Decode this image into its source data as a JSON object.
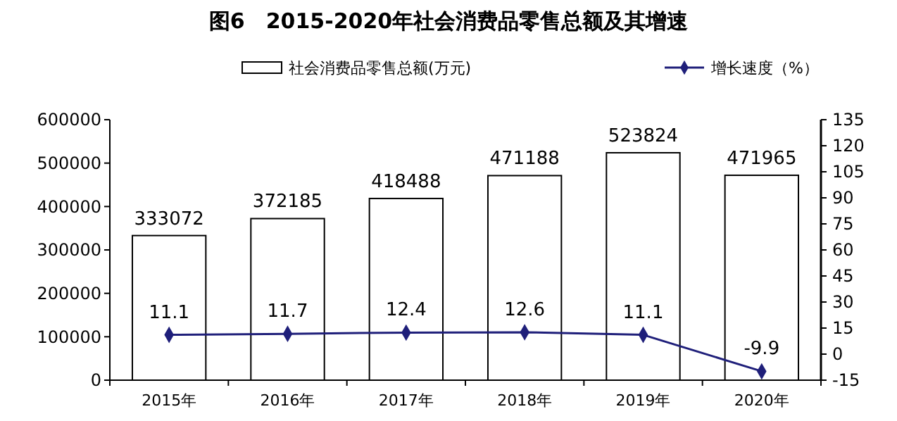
{
  "chart_data": {
    "type": "bar",
    "title": "图6　2015-2020年社会消费品零售总额及其增速",
    "categories": [
      "2015年",
      "2016年",
      "2017年",
      "2018年",
      "2019年",
      "2020年"
    ],
    "series": [
      {
        "name": "社会消费品零售总额(万元)",
        "color": "#ffffff",
        "values": [
          333072,
          372185,
          418488,
          471188,
          523824,
          471965
        ]
      },
      {
        "name": "增长速度（%）",
        "type": "line",
        "axis": "y2",
        "color": "#1f1f7a",
        "values": [
          11.1,
          11.7,
          12.4,
          12.6,
          11.1,
          -9.9
        ]
      }
    ],
    "ylim": [
      0,
      600000
    ],
    "yticks": [
      0,
      100000,
      200000,
      300000,
      400000,
      500000,
      600000
    ],
    "y2lim": [
      -15,
      135
    ],
    "y2ticks": [
      -15,
      0,
      15,
      30,
      45,
      60,
      75,
      90,
      105,
      120,
      135
    ],
    "data_labels": true,
    "legend": "top",
    "marker": "diamond",
    "grid": false
  }
}
